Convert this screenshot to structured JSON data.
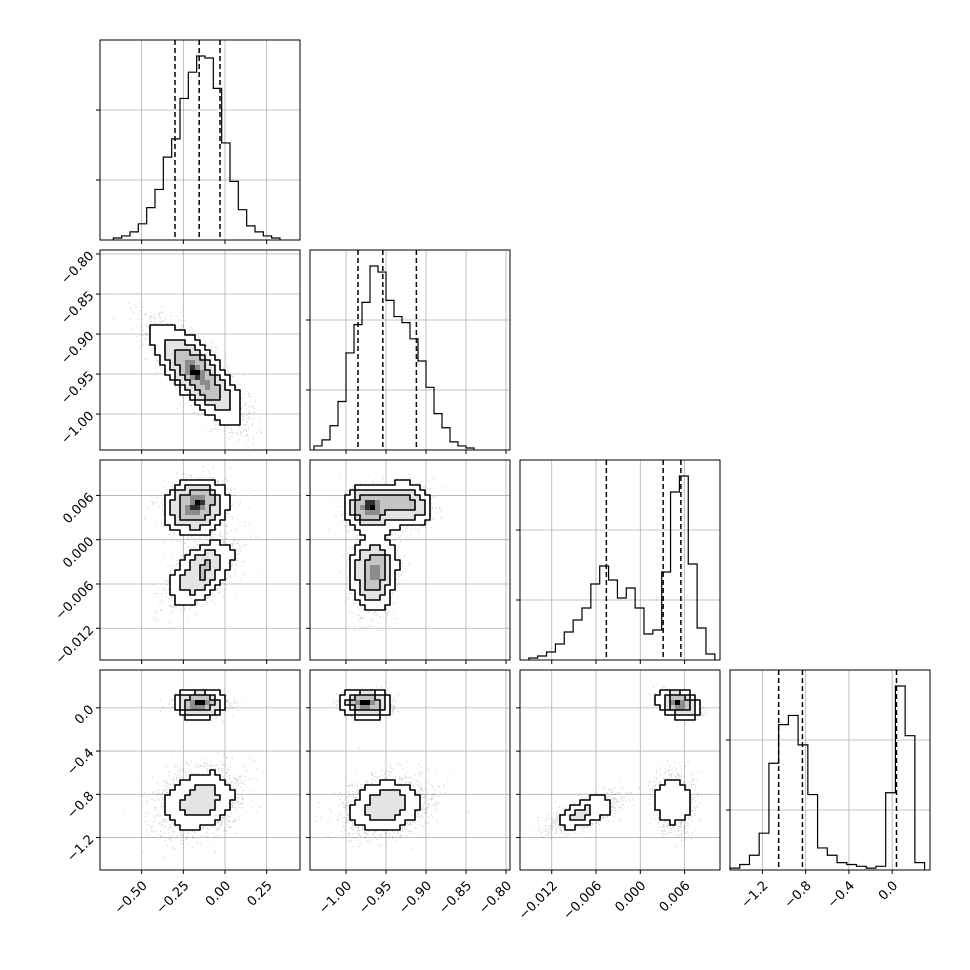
{
  "chart_data": {
    "type": "corner",
    "title": "",
    "grid": true,
    "variables": [
      {
        "range": [
          -0.75,
          0.45
        ],
        "ticks": [
          {
            "value": -0.5,
            "label": "−0.50"
          },
          {
            "value": -0.25,
            "label": "−0.25"
          },
          {
            "value": 0.0,
            "label": "0.00"
          },
          {
            "value": 0.25,
            "label": "0.25"
          }
        ],
        "quantiles": [
          -0.3,
          -0.155,
          -0.03
        ],
        "hist_bins": [
          -0.67,
          -0.62,
          -0.57,
          -0.52,
          -0.47,
          -0.42,
          -0.37,
          -0.32,
          -0.27,
          -0.22,
          -0.17,
          -0.12,
          -0.07,
          -0.02,
          0.03,
          0.08,
          0.13,
          0.18,
          0.23,
          0.28,
          0.33
        ],
        "hist_counts": [
          0.01,
          0.02,
          0.04,
          0.08,
          0.16,
          0.25,
          0.41,
          0.5,
          0.7,
          0.83,
          0.91,
          0.9,
          0.75,
          0.48,
          0.29,
          0.15,
          0.07,
          0.04,
          0.02,
          0.01
        ]
      },
      {
        "range": [
          -1.045,
          -0.795
        ],
        "ticks": [
          {
            "value": -1.0,
            "label": "−1.00"
          },
          {
            "value": -0.95,
            "label": "−0.95"
          },
          {
            "value": -0.9,
            "label": "−0.90"
          },
          {
            "value": -0.85,
            "label": "−0.85"
          },
          {
            "value": -0.8,
            "label": "−0.80"
          }
        ],
        "quantiles": [
          -0.985,
          -0.954,
          -0.912
        ],
        "hist_bins": [
          -1.04,
          -1.03,
          -1.02,
          -1.01,
          -1.0,
          -0.99,
          -0.98,
          -0.97,
          -0.96,
          -0.95,
          -0.94,
          -0.93,
          -0.92,
          -0.91,
          -0.9,
          -0.89,
          -0.88,
          -0.87,
          -0.86,
          -0.85,
          -0.84
        ],
        "hist_counts": [
          0.02,
          0.05,
          0.12,
          0.24,
          0.48,
          0.62,
          0.73,
          0.91,
          0.88,
          0.74,
          0.66,
          0.63,
          0.55,
          0.44,
          0.31,
          0.18,
          0.11,
          0.04,
          0.02,
          0.01
        ]
      },
      {
        "range": [
          -0.0163,
          0.0108
        ],
        "ticks": [
          {
            "value": -0.012,
            "label": "−0.012"
          },
          {
            "value": -0.006,
            "label": "−0.006"
          },
          {
            "value": 0.0,
            "label": "0.000"
          },
          {
            "value": 0.006,
            "label": "0.006"
          }
        ],
        "quantiles": [
          -0.0046,
          0.0031,
          0.0055
        ],
        "hist_bins": [
          -0.0151,
          -0.0139,
          -0.0127,
          -0.0115,
          -0.0103,
          -0.0091,
          -0.0079,
          -0.0067,
          -0.0055,
          -0.0043,
          -0.0031,
          -0.0019,
          -0.0007,
          0.0005,
          0.0017,
          0.0029,
          0.0041,
          0.0053,
          0.0065,
          0.0077,
          0.0089,
          0.0101
        ],
        "hist_counts": [
          0.01,
          0.02,
          0.04,
          0.08,
          0.14,
          0.2,
          0.26,
          0.38,
          0.47,
          0.4,
          0.31,
          0.36,
          0.26,
          0.13,
          0.15,
          0.44,
          0.84,
          0.92,
          0.48,
          0.16,
          0.03
        ]
      },
      {
        "range": [
          -1.5,
          0.35
        ],
        "ticks": [
          {
            "value": -1.2,
            "label": "−1.2"
          },
          {
            "value": -0.8,
            "label": "−0.8"
          },
          {
            "value": -0.4,
            "label": "−0.4"
          },
          {
            "value": 0.0,
            "label": "0.0"
          }
        ],
        "quantiles": [
          -1.05,
          -0.83,
          0.04
        ],
        "hist_bins": [
          -1.5,
          -1.41,
          -1.32,
          -1.23,
          -1.14,
          -1.05,
          -0.96,
          -0.87,
          -0.78,
          -0.69,
          -0.6,
          -0.51,
          -0.42,
          -0.33,
          -0.24,
          -0.15,
          -0.06,
          0.03,
          0.12,
          0.21,
          0.3
        ],
        "hist_counts": [
          0.01,
          0.03,
          0.08,
          0.2,
          0.58,
          0.79,
          0.84,
          0.68,
          0.41,
          0.12,
          0.08,
          0.04,
          0.03,
          0.02,
          0.01,
          0.02,
          0.42,
          1.0,
          0.73,
          0.04
        ]
      }
    ],
    "pairs": [
      {
        "row": 1,
        "col": 0,
        "components": [
          {
            "mx": -0.165,
            "my": -0.95,
            "sx": 0.13,
            "sy": 0.03,
            "rho": -0.8,
            "w": 1.0
          }
        ]
      },
      {
        "row": 2,
        "col": 0,
        "components": [
          {
            "mx": -0.175,
            "my": 0.0045,
            "sx": 0.09,
            "sy": 0.0017,
            "rho": 0.1,
            "w": 0.58
          },
          {
            "mx": -0.145,
            "my": -0.0045,
            "sx": 0.1,
            "sy": 0.0022,
            "rho": 0.55,
            "w": 0.42
          }
        ]
      },
      {
        "row": 2,
        "col": 1,
        "components": [
          {
            "mx": -0.97,
            "my": 0.0045,
            "sx": 0.015,
            "sy": 0.0014,
            "rho": 0.05,
            "w": 0.33
          },
          {
            "mx": -0.925,
            "my": 0.0048,
            "sx": 0.016,
            "sy": 0.0014,
            "rho": -0.1,
            "w": 0.25
          },
          {
            "mx": -0.965,
            "my": -0.0045,
            "sx": 0.013,
            "sy": 0.0025,
            "rho": 0.1,
            "w": 0.42
          }
        ]
      },
      {
        "row": 3,
        "col": 0,
        "components": [
          {
            "mx": -0.155,
            "my": 0.04,
            "sx": 0.07,
            "sy": 0.05,
            "rho": 0.0,
            "w": 0.4
          },
          {
            "mx": -0.155,
            "my": -0.86,
            "sx": 0.12,
            "sy": 0.15,
            "rho": 0.25,
            "w": 0.6
          }
        ]
      },
      {
        "row": 3,
        "col": 1,
        "components": [
          {
            "mx": -0.975,
            "my": 0.04,
            "sx": 0.014,
            "sy": 0.05,
            "rho": 0.0,
            "w": 0.4
          },
          {
            "mx": -0.95,
            "my": -0.9,
            "sx": 0.025,
            "sy": 0.13,
            "rho": 0.2,
            "w": 0.6
          }
        ]
      },
      {
        "row": 3,
        "col": 2,
        "components": [
          {
            "mx": 0.0052,
            "my": 0.04,
            "sx": 0.0012,
            "sy": 0.05,
            "rho": -0.5,
            "w": 0.4
          },
          {
            "mx": -0.0075,
            "my": -0.97,
            "sx": 0.0025,
            "sy": 0.09,
            "rho": 0.7,
            "w": 0.3
          },
          {
            "mx": 0.0045,
            "my": -0.87,
            "sx": 0.0013,
            "sy": 0.13,
            "rho": 0.0,
            "w": 0.3
          }
        ]
      }
    ]
  }
}
